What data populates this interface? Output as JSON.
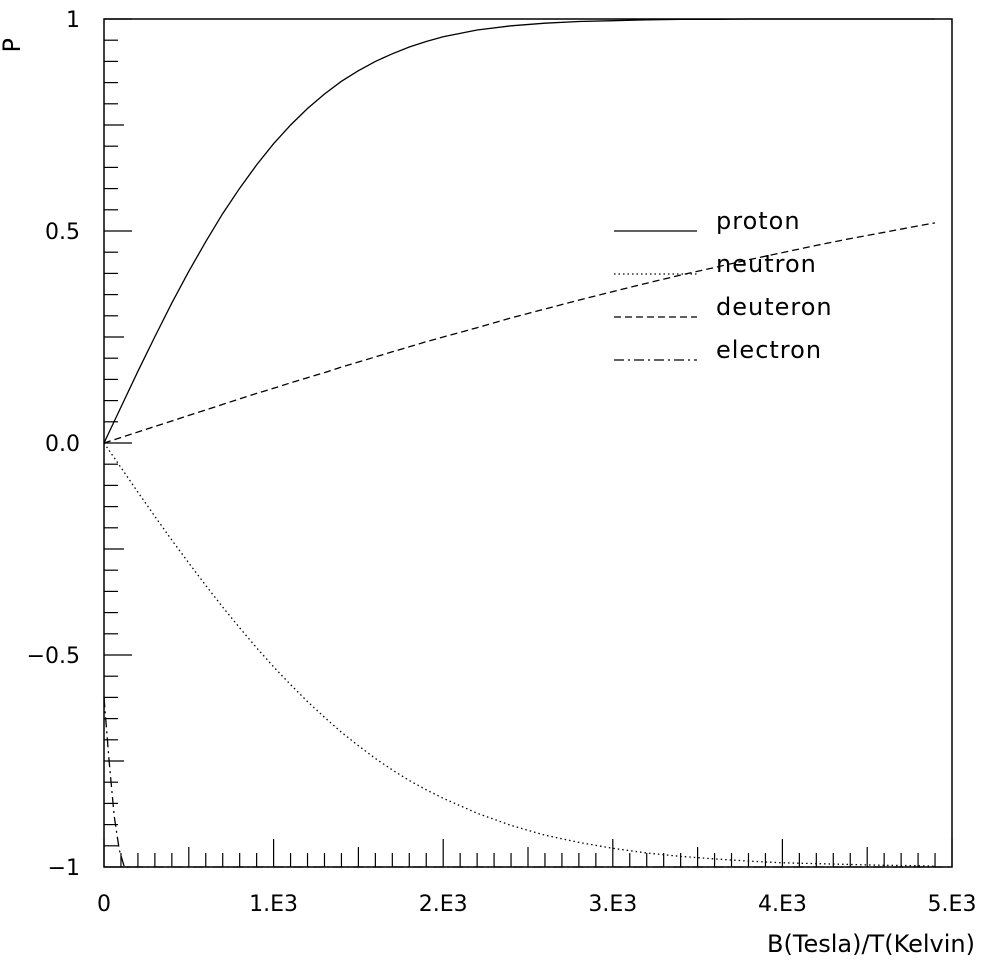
{
  "chart_data": {
    "type": "line",
    "title": "",
    "xlabel": "B(Tesla)/T(Kelvin)",
    "ylabel": "P",
    "xlim": [
      0,
      5000
    ],
    "ylim": [
      -1,
      1
    ],
    "grid": false,
    "legend_position": "right",
    "x_tick_labels": [
      {
        "value": 0,
        "label": "0"
      },
      {
        "value": 1000,
        "label": "1.E3"
      },
      {
        "value": 2000,
        "label": "2.E3"
      },
      {
        "value": 3000,
        "label": "3.E3"
      },
      {
        "value": 4000,
        "label": "4.E3"
      },
      {
        "value": 5000,
        "label": "5.E3"
      }
    ],
    "y_tick_labels": [
      {
        "value": -1,
        "label": "−1"
      },
      {
        "value": -0.5,
        "label": "−0.5"
      },
      {
        "value": 0,
        "label": "0.0"
      },
      {
        "value": 0.5,
        "label": "0.5"
      },
      {
        "value": 1,
        "label": "1"
      }
    ],
    "x": [
      0,
      100,
      200,
      300,
      400,
      500,
      600,
      700,
      800,
      900,
      1000,
      1100,
      1200,
      1300,
      1400,
      1500,
      1600,
      1700,
      1800,
      1900,
      2000,
      2200,
      2400,
      2600,
      2800,
      3000,
      3200,
      3400,
      3600,
      3800,
      4000,
      4200,
      4400,
      4600,
      4800,
      4900
    ],
    "series": [
      {
        "name": "proton",
        "style": "solid",
        "values": [
          0,
          0.085,
          0.169,
          0.251,
          0.33,
          0.405,
          0.475,
          0.541,
          0.601,
          0.656,
          0.706,
          0.75,
          0.789,
          0.823,
          0.853,
          0.878,
          0.9,
          0.918,
          0.934,
          0.947,
          0.958,
          0.974,
          0.984,
          0.99,
          0.994,
          0.996,
          0.998,
          0.999,
          0.999,
          1.0,
          1.0,
          1.0,
          1.0,
          1.0,
          1.0,
          1.0
        ]
      },
      {
        "name": "neutron",
        "style": "dotted",
        "values": [
          0,
          -0.058,
          -0.116,
          -0.173,
          -0.229,
          -0.283,
          -0.336,
          -0.387,
          -0.436,
          -0.483,
          -0.528,
          -0.57,
          -0.61,
          -0.647,
          -0.682,
          -0.714,
          -0.744,
          -0.771,
          -0.796,
          -0.818,
          -0.838,
          -0.873,
          -0.902,
          -0.925,
          -0.942,
          -0.956,
          -0.967,
          -0.975,
          -0.981,
          -0.986,
          -0.99,
          -0.992,
          -0.994,
          -0.996,
          -0.997,
          -0.998
        ]
      },
      {
        "name": "deuteron",
        "style": "dashed",
        "values": [
          0,
          0.013,
          0.026,
          0.039,
          0.052,
          0.065,
          0.078,
          0.091,
          0.104,
          0.117,
          0.129,
          0.142,
          0.154,
          0.166,
          0.179,
          0.191,
          0.203,
          0.215,
          0.227,
          0.239,
          0.25,
          0.272,
          0.295,
          0.316,
          0.337,
          0.357,
          0.377,
          0.396,
          0.414,
          0.432,
          0.449,
          0.466,
          0.482,
          0.497,
          0.512,
          0.519
        ]
      },
      {
        "name": "electron",
        "style": "dashdot",
        "x": [
          0,
          30,
          60,
          90,
          120,
          5000
        ],
        "values": [
          -0.6,
          -0.75,
          -0.88,
          -0.96,
          -1.0,
          -1.0
        ]
      }
    ]
  }
}
